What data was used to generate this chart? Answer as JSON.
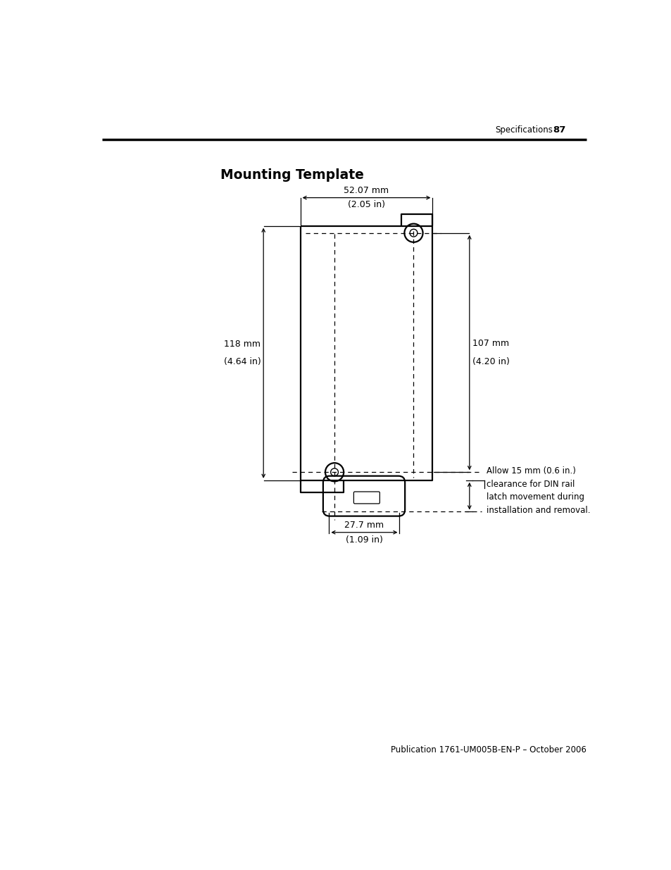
{
  "title": "Mounting Template",
  "header_section": "Specifications",
  "header_page": "87",
  "footer": "Publication 1761-UM005B-EN-P – October 2006",
  "dim_w_mm": "52.07 mm",
  "dim_w_in": "(2.05 in)",
  "dim_h_total_mm": "118 mm",
  "dim_h_total_in": "(4.64 in)",
  "dim_h_holes_mm": "107 mm",
  "dim_h_holes_in": "(4.20 in)",
  "dim_latch_mm": "27.7 mm",
  "dim_latch_in": "(1.09 in)",
  "dim_clearance": "Allow 15 mm (0.6 in.)\nclearance for DIN rail\nlatch movement during\ninstallation and removal.",
  "bg": "#ffffff",
  "lc": "#000000"
}
